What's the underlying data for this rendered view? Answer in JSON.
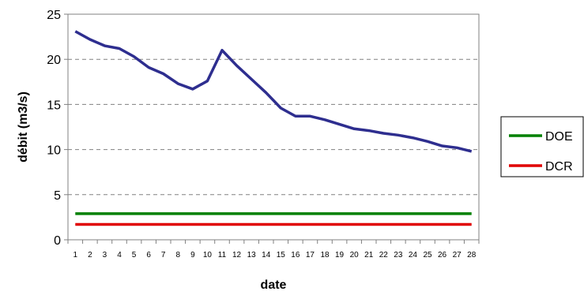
{
  "chart_data": {
    "type": "line",
    "xlabel": "date",
    "ylabel": "débit (m3/s)",
    "ylim": [
      0,
      25
    ],
    "yticks": [
      "0",
      "5",
      "10",
      "15",
      "20",
      "25"
    ],
    "x": [
      1,
      2,
      3,
      4,
      5,
      6,
      7,
      8,
      9,
      10,
      11,
      12,
      13,
      14,
      15,
      16,
      17,
      18,
      19,
      20,
      21,
      22,
      23,
      24,
      25,
      26,
      27,
      28
    ],
    "grid": "horizontal dashed",
    "legend_position": "right",
    "series": [
      {
        "values": [
          23.1,
          22.2,
          21.5,
          21.2,
          20.3,
          19.1,
          18.4,
          17.3,
          16.7,
          17.6,
          21.0,
          19.3,
          17.8,
          16.3,
          14.6,
          13.7,
          13.7,
          13.3,
          12.8,
          12.3,
          12.1,
          11.8,
          11.6,
          11.3,
          10.9,
          10.4,
          10.2,
          9.8
        ],
        "color": "#2e2e8f"
      },
      {
        "name": "DOE",
        "values": [
          2.9,
          2.9,
          2.9,
          2.9,
          2.9,
          2.9,
          2.9,
          2.9,
          2.9,
          2.9,
          2.9,
          2.9,
          2.9,
          2.9,
          2.9,
          2.9,
          2.9,
          2.9,
          2.9,
          2.9,
          2.9,
          2.9,
          2.9,
          2.9,
          2.9,
          2.9,
          2.9,
          2.9
        ],
        "color": "#008000"
      },
      {
        "name": "DCR",
        "values": [
          1.7,
          1.7,
          1.7,
          1.7,
          1.7,
          1.7,
          1.7,
          1.7,
          1.7,
          1.7,
          1.7,
          1.7,
          1.7,
          1.7,
          1.7,
          1.7,
          1.7,
          1.7,
          1.7,
          1.7,
          1.7,
          1.7,
          1.7,
          1.7,
          1.7,
          1.7,
          1.7,
          1.7
        ],
        "color": "#e00000"
      }
    ]
  }
}
